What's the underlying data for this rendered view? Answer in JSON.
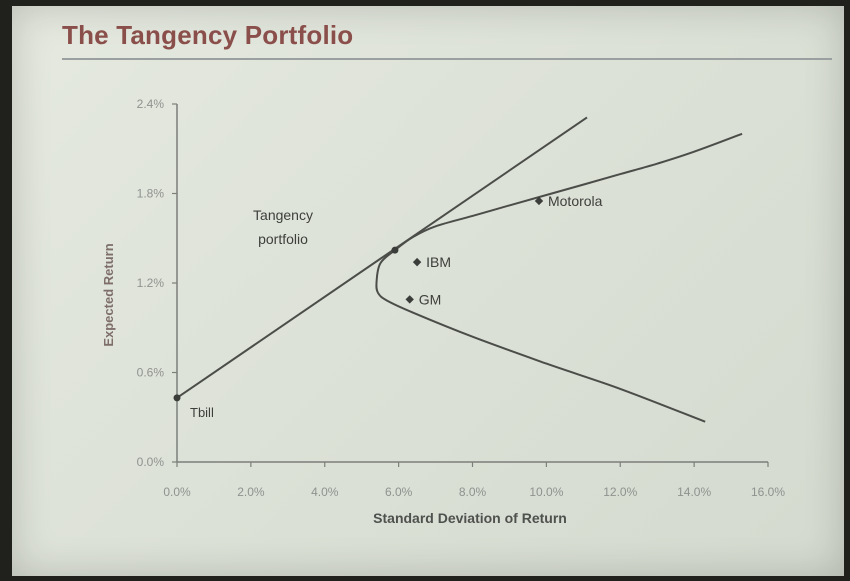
{
  "slide": {
    "title": "The Tangency Portfolio"
  },
  "chart_data": {
    "type": "scatter",
    "xlabel": "Standard Deviation of Return",
    "ylabel": "Expected Return",
    "xlim": [
      0.0,
      16.0
    ],
    "ylim": [
      0.0,
      2.4
    ],
    "x_ticks": [
      "0.0%",
      "2.0%",
      "4.0%",
      "6.0%",
      "8.0%",
      "10.0%",
      "12.0%",
      "14.0%",
      "16.0%"
    ],
    "y_ticks": [
      "0.0%",
      "0.6%",
      "1.2%",
      "1.8%",
      "2.4%"
    ],
    "grid": false,
    "points": [
      {
        "label": "Tbill",
        "x": 0.0,
        "y": 0.43
      },
      {
        "label": "IBM",
        "x": 6.5,
        "y": 1.34
      },
      {
        "label": "GM",
        "x": 6.3,
        "y": 1.09
      },
      {
        "label": "Motorola",
        "x": 9.8,
        "y": 1.75
      }
    ],
    "tangency_point": {
      "x": 5.9,
      "y": 1.42
    },
    "annotation": "Tangency\nportfolio",
    "tangent_line": {
      "x": [
        0.0,
        11.1
      ],
      "y": [
        0.43,
        2.31
      ]
    },
    "frontier": {
      "x": [
        14.3,
        12.0,
        10.0,
        8.0,
        6.4,
        5.7,
        5.45,
        5.4,
        5.5,
        5.9,
        6.4,
        7.0,
        8.0,
        9.0,
        10.0,
        11.0,
        12.0,
        13.0,
        14.0,
        15.3
      ],
      "y": [
        0.27,
        0.49,
        0.66,
        0.84,
        1.0,
        1.08,
        1.13,
        1.2,
        1.33,
        1.42,
        1.51,
        1.58,
        1.65,
        1.72,
        1.79,
        1.86,
        1.93,
        2.0,
        2.08,
        2.2
      ]
    }
  }
}
